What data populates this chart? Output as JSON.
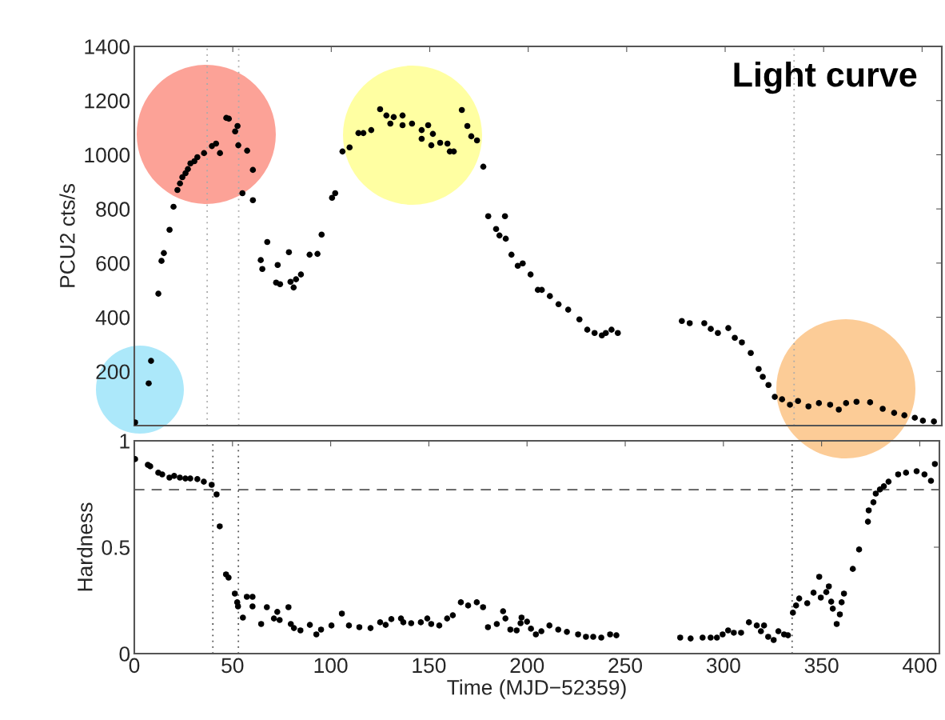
{
  "chart_data": [
    {
      "type": "scatter",
      "title": "Light curve",
      "ylabel": "PCU2 cts/s",
      "xlim": [
        0,
        410
      ],
      "xticks": [
        0,
        50,
        100,
        150,
        200,
        250,
        300,
        350,
        400
      ],
      "ylim": [
        0,
        1400
      ],
      "yticks": [
        200,
        400,
        600,
        800,
        1000,
        1200,
        1400
      ],
      "tick_labels": "y",
      "grid": false,
      "marker": "circle",
      "ref_lines": [
        {
          "axis": "x",
          "value": 37,
          "line_style": "dotted",
          "color": "#aaaaaa"
        },
        {
          "axis": "x",
          "value": 53,
          "line_style": "dotted",
          "color": "#aaaaaa"
        },
        {
          "axis": "x",
          "value": 335,
          "line_style": "dotted",
          "color": "#aaaaaa"
        }
      ],
      "series": [
        {
          "color": "#000000",
          "x": [
            0.4,
            7.3,
            8.5,
            12.2,
            13.8,
            15,
            17.9,
            19.9,
            21.9,
            23.2,
            24.4,
            26,
            27.2,
            28.5,
            30.5,
            32,
            35.4,
            39.4,
            41.5,
            43.5,
            46.7,
            48,
            51.2,
            52.4,
            52.8,
            54.9,
            57.3,
            60.2,
            60.2,
            64.2,
            65,
            67.5,
            72,
            72.8,
            74,
            78.5,
            79.3,
            80.9,
            82.1,
            84.6,
            89,
            93,
            95.1,
            100.4,
            102,
            105.7,
            109.3,
            113.8,
            116.3,
            120.3,
            124.8,
            128,
            130,
            131.7,
            136.2,
            136.2,
            141,
            145.9,
            145.9,
            149.2,
            150.8,
            151.6,
            155.3,
            159,
            160.2,
            162.2,
            166.3,
            169.1,
            171.1,
            174,
            177.2,
            179.7,
            183.7,
            185.4,
            188.2,
            188.6,
            191.5,
            194.7,
            197.2,
            201.2,
            204.9,
            206.9,
            211,
            215.4,
            220.3,
            226,
            230,
            233.7,
            237.4,
            239.4,
            242.3,
            245.5,
            278,
            282,
            289.4,
            292.7,
            296.3,
            301.6,
            304.9,
            308.5,
            313,
            317,
            319.1,
            322,
            325.2,
            328.9,
            332.9,
            337,
            342.3,
            347.6,
            353.3,
            357.7,
            361.4,
            366.7,
            373.6,
            380,
            385.8,
            391,
            396.3,
            400.4,
            406
          ],
          "values": [
            12,
            156,
            239,
            487,
            608,
            637,
            723,
            808,
            870,
            894,
            917,
            932,
            947,
            968,
            976,
            991,
            1006,
            1032,
            1041,
            1006,
            1136,
            1133,
            1086,
            1106,
            1035,
            858,
            1015,
            944,
            832,
            611,
            578,
            678,
            528,
            593,
            522,
            640,
            531,
            510,
            540,
            558,
            631,
            634,
            705,
            841,
            858,
            1012,
            1027,
            1080,
            1080,
            1091,
            1168,
            1145,
            1115,
            1139,
            1145,
            1109,
            1115,
            1091,
            1059,
            1109,
            1035,
            1077,
            1044,
            1041,
            1012,
            1012,
            1165,
            1106,
            1068,
            1053,
            956,
            773,
            726,
            702,
            773,
            690,
            631,
            590,
            599,
            558,
            501,
            501,
            478,
            448,
            428,
            392,
            354,
            342,
            333,
            342,
            354,
            342,
            386,
            378,
            378,
            357,
            342,
            360,
            324,
            307,
            268,
            209,
            180,
            150,
            106,
            97,
            77,
            91,
            71,
            83,
            77,
            59,
            83,
            88,
            86,
            62,
            47,
            38,
            29,
            18,
            15
          ]
        }
      ]
    },
    {
      "type": "scatter",
      "xlabel": "Time (MJD−52359)",
      "ylabel": "Hardness",
      "xlim": [
        0,
        410
      ],
      "xticks": [
        0,
        50,
        100,
        150,
        200,
        250,
        300,
        350,
        400
      ],
      "ylim": [
        0,
        1
      ],
      "yticks": [
        0,
        0.5,
        1
      ],
      "grid": false,
      "marker": "circle",
      "ref_lines": [
        {
          "axis": "x",
          "value": 40,
          "line_style": "dotted",
          "color": "#555555"
        },
        {
          "axis": "x",
          "value": 53,
          "line_style": "dotted",
          "color": "#555555"
        },
        {
          "axis": "x",
          "value": 335,
          "line_style": "dotted",
          "color": "#555555"
        },
        {
          "axis": "y",
          "value": 0.77,
          "line_style": "dashed",
          "color": "#555555"
        }
      ],
      "series": [
        {
          "color": "#000000",
          "x": [
            0.4,
            6.9,
            8.1,
            12.2,
            14.2,
            17.9,
            20.3,
            23.2,
            26,
            28.5,
            32.1,
            35.4,
            39.4,
            41.9,
            43.5,
            46.7,
            48,
            51.2,
            52.4,
            52.8,
            55.3,
            57.3,
            60.2,
            60.2,
            64.6,
            67.5,
            71.1,
            72.8,
            74,
            78.5,
            79.7,
            81.3,
            84.6,
            89.4,
            92.7,
            95.1,
            100.4,
            105.7,
            109.3,
            114.6,
            120.3,
            125.2,
            128,
            130.9,
            135.8,
            137,
            141,
            145.9,
            149.2,
            151.2,
            155.3,
            159.3,
            162.2,
            166.3,
            170,
            174.4,
            177.6,
            180.1,
            184.6,
            187.8,
            189,
            191.5,
            194.7,
            196.7,
            197.2,
            200,
            202,
            204.5,
            207.3,
            211.4,
            215.9,
            220.3,
            226,
            230,
            233.7,
            237.8,
            242.3,
            245.5,
            278,
            283.3,
            289.4,
            293.5,
            296.7,
            299.6,
            302.4,
            305.3,
            309,
            313,
            317,
            319.1,
            320.7,
            322.8,
            325.6,
            328,
            330.9,
            332.9,
            335.4,
            337,
            338.6,
            342.7,
            345.9,
            348.8,
            349.6,
            352.4,
            353.7,
            354.9,
            355.7,
            357.7,
            359.3,
            360.2,
            361.4,
            365.9,
            369.1,
            373.6,
            374,
            376.4,
            377.6,
            379.7,
            381.7,
            384.1,
            389,
            393,
            398.4,
            402.4,
            405.7,
            407.7
          ],
          "values": [
            0.914,
            0.887,
            0.88,
            0.85,
            0.842,
            0.827,
            0.835,
            0.827,
            0.823,
            0.823,
            0.82,
            0.808,
            0.793,
            0.748,
            0.598,
            0.372,
            0.357,
            0.282,
            0.241,
            0.222,
            0.169,
            0.267,
            0.267,
            0.222,
            0.139,
            0.218,
            0.165,
            0.196,
            0.158,
            0.218,
            0.139,
            0.12,
            0.109,
            0.135,
            0.09,
            0.113,
            0.132,
            0.188,
            0.132,
            0.124,
            0.12,
            0.147,
            0.135,
            0.162,
            0.165,
            0.147,
            0.143,
            0.147,
            0.165,
            0.139,
            0.132,
            0.165,
            0.18,
            0.241,
            0.226,
            0.241,
            0.218,
            0.124,
            0.139,
            0.199,
            0.165,
            0.113,
            0.109,
            0.143,
            0.169,
            0.15,
            0.117,
            0.09,
            0.105,
            0.132,
            0.113,
            0.102,
            0.09,
            0.079,
            0.079,
            0.075,
            0.09,
            0.086,
            0.075,
            0.071,
            0.075,
            0.075,
            0.075,
            0.09,
            0.109,
            0.098,
            0.098,
            0.147,
            0.132,
            0.105,
            0.132,
            0.079,
            0.064,
            0.105,
            0.09,
            0.086,
            0.192,
            0.226,
            0.259,
            0.237,
            0.286,
            0.361,
            0.263,
            0.289,
            0.316,
            0.244,
            0.211,
            0.139,
            0.184,
            0.241,
            0.282,
            0.398,
            0.489,
            0.62,
            0.673,
            0.711,
            0.752,
            0.771,
            0.786,
            0.808,
            0.842,
            0.85,
            0.857,
            0.842,
            0.812,
            0.891
          ]
        }
      ]
    }
  ]
}
